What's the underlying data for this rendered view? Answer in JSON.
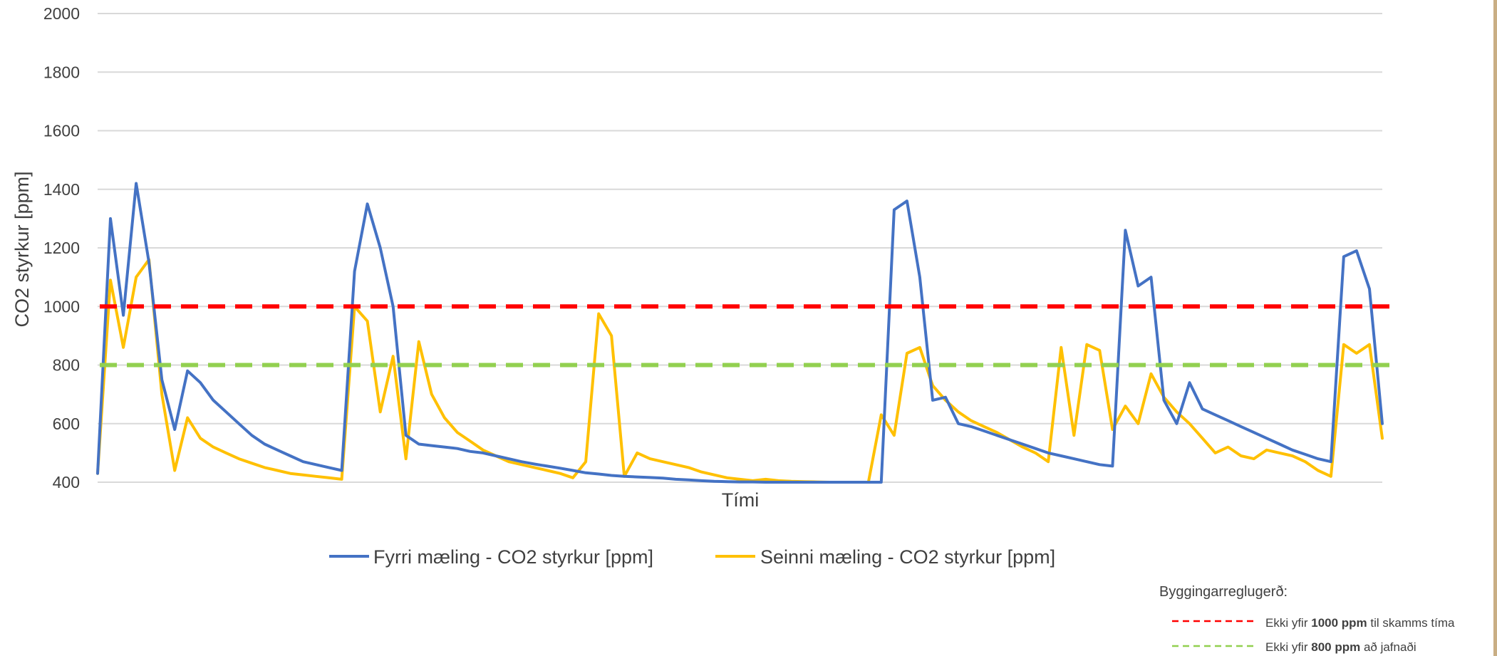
{
  "colors": {
    "series_a": "#4472c4",
    "series_b": "#ffc000",
    "limit_1000": "#ff0000",
    "limit_800": "#92d050",
    "grid": "#d9d9d9",
    "text": "#404040"
  },
  "chart_data": {
    "type": "line",
    "title": "",
    "xlabel": "Tími",
    "ylabel": "CO2 styrkur [ppm]",
    "ylim": [
      400,
      2000
    ],
    "yticks": [
      "400",
      "600",
      "800",
      "1000",
      "1200",
      "1400",
      "1600",
      "1800",
      "2000"
    ],
    "grid": "horizontal",
    "legend_position": "bottom",
    "x": [
      0,
      1,
      2,
      3,
      4,
      5,
      6,
      7,
      8,
      9,
      10,
      11,
      12,
      13,
      14,
      15,
      16,
      17,
      18,
      19,
      20,
      21,
      22,
      23,
      24,
      25,
      26,
      27,
      28,
      29,
      30,
      31,
      32,
      33,
      34,
      35,
      36,
      37,
      38,
      39,
      40,
      41,
      42,
      43,
      44,
      45,
      46,
      47,
      48,
      49,
      50,
      51,
      52,
      53,
      54,
      55,
      56,
      57,
      58,
      59,
      60,
      61,
      62,
      63,
      64,
      65,
      66,
      67,
      68,
      69,
      70,
      71,
      72,
      73,
      74,
      75,
      76,
      77,
      78,
      79,
      80,
      81,
      82,
      83,
      84,
      85,
      86,
      87,
      88,
      89,
      90,
      91,
      92,
      93,
      94,
      95,
      96,
      97,
      98,
      99,
      100
    ],
    "series": [
      {
        "name": "Fyrri mæling - CO2 styrkur [ppm]",
        "values": [
          430,
          1300,
          970,
          1420,
          1150,
          750,
          580,
          780,
          740,
          680,
          640,
          600,
          560,
          530,
          510,
          490,
          470,
          460,
          450,
          440,
          1120,
          1350,
          1200,
          1000,
          560,
          530,
          525,
          520,
          515,
          505,
          500,
          490,
          480,
          470,
          462,
          455,
          448,
          440,
          432,
          428,
          423,
          420,
          418,
          416,
          414,
          410,
          408,
          405,
          403,
          402,
          401,
          401,
          400,
          400,
          400,
          400,
          400,
          400,
          400,
          400,
          400,
          400,
          1330,
          1360,
          1100,
          680,
          690,
          600,
          590,
          575,
          560,
          545,
          530,
          515,
          500,
          490,
          480,
          470,
          460,
          455,
          1260,
          1070,
          1100,
          680,
          600,
          740,
          650,
          630,
          610,
          590,
          570,
          550,
          530,
          510,
          495,
          480,
          470,
          1170,
          1190,
          1060,
          600
        ]
      },
      {
        "name": "Seinni mæling - CO2 styrkur [ppm]",
        "values": [
          430,
          1090,
          860,
          1100,
          1160,
          700,
          440,
          620,
          550,
          520,
          500,
          480,
          465,
          450,
          440,
          430,
          425,
          420,
          415,
          410,
          1000,
          950,
          640,
          830,
          480,
          880,
          700,
          620,
          570,
          540,
          510,
          490,
          470,
          460,
          450,
          440,
          430,
          415,
          470,
          975,
          900,
          420,
          500,
          480,
          470,
          460,
          450,
          435,
          425,
          415,
          410,
          405,
          410,
          405,
          403,
          402,
          401,
          400,
          400,
          400,
          400,
          630,
          560,
          840,
          860,
          730,
          680,
          640,
          610,
          590,
          570,
          545,
          520,
          500,
          470,
          860,
          560,
          870,
          850,
          580,
          660,
          600,
          770,
          690,
          640,
          600,
          550,
          500,
          520,
          490,
          480,
          510,
          500,
          490,
          470,
          440,
          420,
          870,
          840,
          870,
          550
        ]
      }
    ],
    "reference_lines": [
      {
        "value": 1000,
        "label_pre": "Ekki yfir ",
        "label_bold": "1000 ppm",
        "label_post": " til skamms tíma"
      },
      {
        "value": 800,
        "label_pre": "Ekki yfir ",
        "label_bold": "800 ppm",
        "label_post": " að jafnaði"
      }
    ],
    "reference_title": "Byggingarreglugerð:"
  }
}
